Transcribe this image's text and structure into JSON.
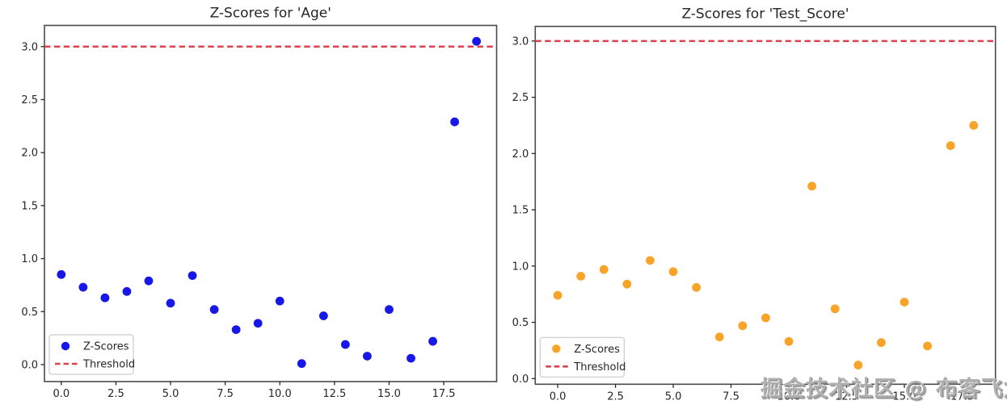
{
  "watermark": "掘金技术社区 @ 布客飞龙",
  "colors": {
    "age_points": "#1717e6",
    "test_score_points": "#f7a429",
    "threshold": "#dc4150",
    "text": "#262626",
    "spine": "#4a4a4a",
    "legend_border": "#cccccc"
  },
  "chart_data": [
    {
      "type": "scatter",
      "title": "Z-Scores for 'Age'",
      "series": [
        {
          "name": "Z-Scores",
          "x": [
            0,
            1,
            2,
            3,
            4,
            5,
            6,
            7,
            8,
            9,
            10,
            11,
            12,
            13,
            14,
            15,
            16,
            17,
            18,
            19
          ],
          "values": [
            0.85,
            0.73,
            0.63,
            0.69,
            0.79,
            0.58,
            0.84,
            0.52,
            0.33,
            0.39,
            0.6,
            0.01,
            0.46,
            0.19,
            0.08,
            0.52,
            0.06,
            0.22,
            2.29,
            3.05
          ]
        }
      ],
      "threshold": 3.0,
      "threshold_label": "Threshold",
      "series_label": "Z-Scores",
      "point_color": "#1717e6",
      "xticks": [
        0,
        2.5,
        5,
        7.5,
        10,
        12.5,
        15,
        17.5
      ],
      "xtick_labels": [
        "0.0",
        "2.5",
        "5.0",
        "7.5",
        "10.0",
        "12.5",
        "15.0",
        "17.5"
      ],
      "yticks": [
        0,
        0.5,
        1,
        1.5,
        2,
        2.5,
        3
      ],
      "ytick_labels": [
        "0.0",
        "0.5",
        "1.0",
        "1.5",
        "2.0",
        "2.5",
        "3.0"
      ],
      "xlim": [
        -0.77,
        19.92
      ],
      "ylim": [
        -0.16,
        3.2
      ],
      "grid": false,
      "legend_position": "lower left"
    },
    {
      "type": "scatter",
      "title": "Z-Scores for 'Test_Score'",
      "series": [
        {
          "name": "Z-Scores",
          "x": [
            0,
            1,
            2,
            3,
            4,
            5,
            6,
            7,
            8,
            9,
            10,
            11,
            12,
            13,
            14,
            15,
            16,
            17,
            18
          ],
          "values": [
            0.74,
            0.91,
            0.97,
            0.84,
            1.05,
            0.95,
            0.81,
            0.37,
            0.47,
            0.54,
            0.33,
            1.71,
            0.62,
            0.12,
            0.32,
            0.68,
            0.29,
            2.07,
            2.25
          ]
        }
      ],
      "threshold": 3.0,
      "threshold_label": "Threshold",
      "series_label": "Z-Scores",
      "point_color": "#f7a429",
      "xticks": [
        0,
        2.5,
        5,
        7.5,
        10,
        12.5,
        15,
        17.5
      ],
      "xtick_labels": [
        "0.0",
        "2.5",
        "5.0",
        "7.5",
        "10.0",
        "12.5",
        "15.0",
        "17.5"
      ],
      "yticks": [
        0,
        0.5,
        1,
        1.5,
        2,
        2.5,
        3
      ],
      "ytick_labels": [
        "0.0",
        "0.5",
        "1.0",
        "1.5",
        "2.0",
        "2.5",
        "3.0"
      ],
      "xlim": [
        -0.97,
        18.94
      ],
      "ylim": [
        -0.05,
        3.13
      ],
      "grid": false,
      "legend_position": "lower left"
    }
  ]
}
